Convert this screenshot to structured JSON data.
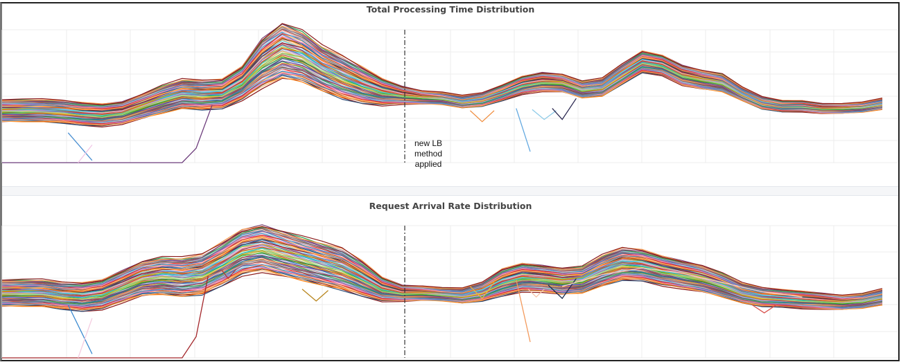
{
  "panels": [
    {
      "title": "Total Processing Time Distribution"
    },
    {
      "title": "Request Arrival Rate Distribution"
    }
  ],
  "annotation": {
    "line1": "new LB method",
    "line2": "applied"
  },
  "chart_data": [
    {
      "type": "line",
      "title": "Total Processing Time Distribution",
      "xlabel": "",
      "ylabel": "",
      "grid": true,
      "legend": "none",
      "x_range": [
        0,
        41
      ],
      "y_range": [
        0,
        6
      ],
      "vline": {
        "x": 18.3,
        "style": "dash-dot",
        "label": "new LB method applied"
      },
      "base_profile": [
        2.35,
        2.35,
        2.35,
        2.3,
        2.2,
        2.15,
        2.25,
        2.55,
        2.85,
        3.1,
        3.05,
        3.1,
        3.6,
        4.5,
        5.05,
        4.8,
        4.25,
        3.85,
        3.5,
        3.2,
        3.05,
        2.95,
        2.9,
        2.75,
        2.85,
        3.15,
        3.5,
        3.65,
        3.6,
        3.3,
        3.4,
        4.0,
        4.55,
        4.4,
        3.95,
        3.75,
        3.6,
        3.1,
        2.7,
        2.55,
        2.55,
        2.45,
        2.45,
        2.5,
        2.65
      ],
      "band_spread": [
        1.0,
        1.0,
        1.0,
        1.0,
        1.0,
        1.0,
        1.0,
        1.1,
        1.25,
        1.3,
        1.3,
        1.3,
        1.5,
        2.2,
        2.5,
        2.3,
        2.0,
        1.9,
        1.6,
        1.2,
        0.8,
        0.6,
        0.55,
        0.55,
        0.6,
        0.7,
        0.8,
        0.85,
        0.8,
        0.75,
        0.8,
        0.9,
        0.95,
        0.9,
        0.9,
        0.85,
        0.8,
        0.6,
        0.55,
        0.5,
        0.5,
        0.45,
        0.45,
        0.45,
        0.5
      ],
      "n_series": 60,
      "outliers": [
        {
          "color": "#6b3a7a",
          "points": [
            [
              0,
              0
            ],
            [
              1,
              0
            ],
            [
              2,
              0
            ],
            [
              3,
              0
            ],
            [
              4,
              0
            ],
            [
              5,
              0
            ],
            [
              6,
              0
            ],
            [
              7,
              0
            ],
            [
              8,
              0
            ],
            [
              9,
              0
            ],
            [
              9.7,
              0.65
            ],
            [
              10.5,
              2.6
            ]
          ]
        },
        {
          "color": "#4a8fd1",
          "points": [
            [
              3.3,
              1.35
            ],
            [
              4.5,
              0.1
            ]
          ]
        },
        {
          "color": "#f1c6e6",
          "points": [
            [
              3.8,
              0
            ],
            [
              4.5,
              0.8
            ]
          ]
        },
        {
          "color": "#f08c3c",
          "points": [
            [
              23.4,
              2.35
            ],
            [
              24,
              1.85
            ],
            [
              24.6,
              2.35
            ]
          ]
        },
        {
          "color": "#62a8e0",
          "points": [
            [
              25.7,
              2.45
            ],
            [
              26.4,
              0.5
            ]
          ]
        },
        {
          "color": "#8ecbe8",
          "points": [
            [
              26.5,
              2.4
            ],
            [
              27.1,
              1.95
            ],
            [
              27.7,
              2.35
            ]
          ]
        },
        {
          "color": "#2a2850",
          "points": [
            [
              27.5,
              2.45
            ],
            [
              28,
              1.95
            ],
            [
              28.7,
              2.9
            ]
          ]
        }
      ]
    },
    {
      "type": "line",
      "title": "Request Arrival Rate Distribution",
      "xlabel": "",
      "ylabel": "",
      "grid": true,
      "legend": "none",
      "x_range": [
        0,
        41
      ],
      "y_range": [
        0,
        5
      ],
      "vline": {
        "x": 18.3,
        "style": "dash-dot"
      },
      "base_profile": [
        2.45,
        2.45,
        2.45,
        2.35,
        2.3,
        2.4,
        2.7,
        3.0,
        3.1,
        3.05,
        3.15,
        3.55,
        4.0,
        4.15,
        3.95,
        3.75,
        3.55,
        3.35,
        3.0,
        2.6,
        2.45,
        2.45,
        2.4,
        2.35,
        2.5,
        2.85,
        3.05,
        3.0,
        2.9,
        2.95,
        3.3,
        3.55,
        3.5,
        3.3,
        3.15,
        3.0,
        2.75,
        2.45,
        2.3,
        2.25,
        2.2,
        2.15,
        2.1,
        2.15,
        2.3
      ],
      "band_spread": [
        1.0,
        1.0,
        1.0,
        1.0,
        1.05,
        1.1,
        1.2,
        1.3,
        1.4,
        1.45,
        1.5,
        1.6,
        1.7,
        1.75,
        1.7,
        1.65,
        1.6,
        1.55,
        1.3,
        0.9,
        0.6,
        0.55,
        0.5,
        0.55,
        0.7,
        1.0,
        1.05,
        1.0,
        1.0,
        1.0,
        1.15,
        1.2,
        1.15,
        1.1,
        1.05,
        1.0,
        0.9,
        0.75,
        0.7,
        0.65,
        0.65,
        0.6,
        0.55,
        0.55,
        0.6
      ],
      "n_series": 60,
      "outliers": [
        {
          "color": "#a3262a",
          "points": [
            [
              0,
              0
            ],
            [
              1,
              0
            ],
            [
              2,
              0
            ],
            [
              3,
              0
            ],
            [
              4,
              0
            ],
            [
              5,
              0
            ],
            [
              6,
              0
            ],
            [
              7,
              0
            ],
            [
              8,
              0
            ],
            [
              9,
              0
            ],
            [
              9.7,
              0.8
            ],
            [
              10.3,
              3.1
            ]
          ]
        },
        {
          "color": "#3b8ad0",
          "points": [
            [
              3.3,
              2.0
            ],
            [
              4.5,
              0.15
            ]
          ]
        },
        {
          "color": "#f4cde0",
          "points": [
            [
              3.8,
              0
            ],
            [
              4.5,
              1.5
            ]
          ]
        },
        {
          "color": "#b23a3a",
          "points": [
            [
              11,
              3.3
            ],
            [
              11.3,
              3.0
            ],
            [
              11.7,
              3.35
            ]
          ]
        },
        {
          "color": "#b8861e",
          "points": [
            [
              15,
              2.6
            ],
            [
              15.7,
              2.15
            ],
            [
              16.3,
              2.55
            ]
          ]
        },
        {
          "color": "#f0b23c",
          "points": [
            [
              23.4,
              2.7
            ],
            [
              24,
              2.25
            ],
            [
              24.6,
              2.85
            ]
          ]
        },
        {
          "color": "#f39a5c",
          "points": [
            [
              25.7,
              2.95
            ],
            [
              26.4,
              0.6
            ]
          ]
        },
        {
          "color": "#f6c3a8",
          "points": [
            [
              26.3,
              2.6
            ],
            [
              26.7,
              2.3
            ],
            [
              27.1,
              2.6
            ]
          ]
        },
        {
          "color": "#1c2e50",
          "points": [
            [
              27.3,
              2.75
            ],
            [
              28,
              2.25
            ],
            [
              28.7,
              3.0
            ]
          ]
        },
        {
          "color": "#fbd0c4",
          "points": [
            [
              28,
              2.7
            ],
            [
              30,
              3.15
            ],
            [
              32,
              3.4
            ],
            [
              34,
              3.2
            ],
            [
              36,
              2.85
            ],
            [
              38,
              2.5
            ],
            [
              40,
              2.3
            ]
          ]
        },
        {
          "color": "#d9534f",
          "points": [
            [
              37.5,
              2.0
            ],
            [
              38.1,
              1.7
            ],
            [
              38.7,
              2.0
            ]
          ]
        }
      ]
    }
  ]
}
